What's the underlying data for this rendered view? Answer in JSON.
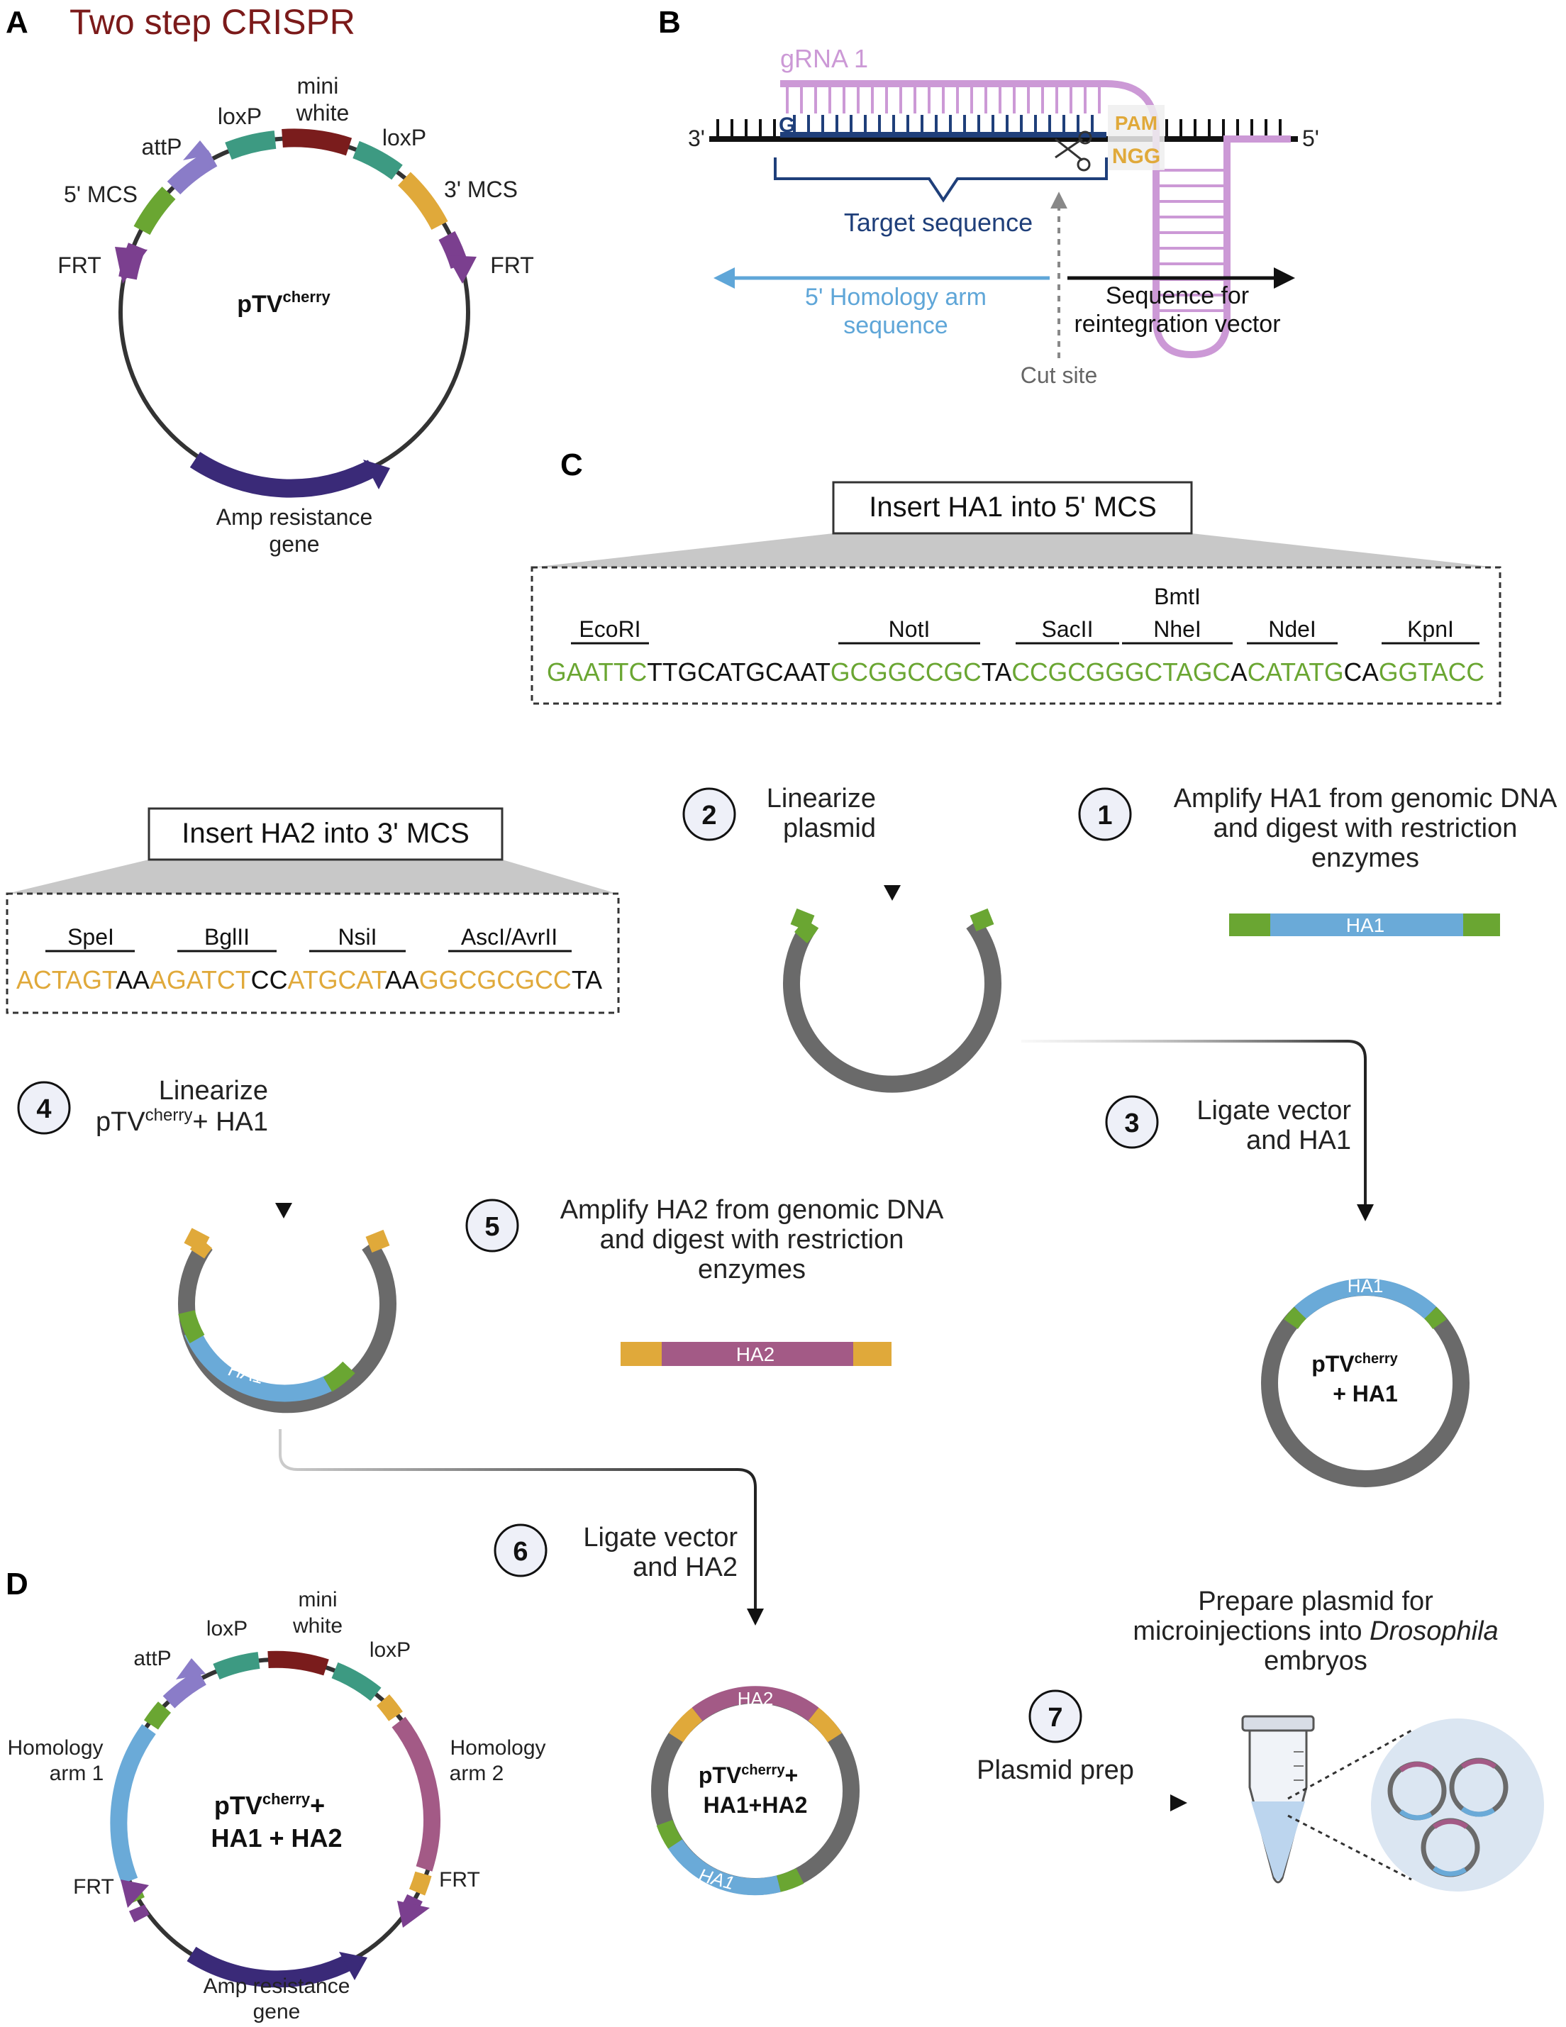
{
  "panels": {
    "a": "A",
    "b": "B",
    "c": "C",
    "d": "D"
  },
  "title": "Two step CRISPR",
  "colors": {
    "title": "#7b1a1a",
    "green": "#6aa632",
    "teal": "#3d9a82",
    "red": "#7a1c1c",
    "orange": "#e0a93a",
    "purple": "#7b3f8f",
    "lavender": "#8a7cc8",
    "navy": "#3a2a78",
    "blue": "#6aaad8",
    "pink": "#a35a86",
    "gray": "#6a6a6a",
    "grna": "#cc99d6",
    "target": "#1f3f7a",
    "light_blue": "#5fa6d8"
  },
  "plasmid_a": {
    "name_main": "pTV",
    "name_sup": "cherry",
    "labels": {
      "mini": "mini",
      "white": "white",
      "loxp_left": "loxP",
      "loxp_right": "loxP",
      "attp": "attP",
      "mcs5": "5' MCS",
      "mcs3": "3' MCS",
      "frt_left": "FRT",
      "frt_right": "FRT",
      "amp1": "Amp resistance",
      "amp2": "gene"
    }
  },
  "panel_b": {
    "grna": "gRNA 1",
    "g": "G",
    "end3": "3'",
    "end5": "5'",
    "pam": "PAM",
    "ngg": "NGG",
    "target": "Target sequence",
    "ha1": "5' Homology arm",
    "ha2": "sequence",
    "reint1": "Sequence for",
    "reint2": "reintegration vector",
    "cut": "Cut site"
  },
  "box_c": {
    "title": "Insert HA1 into 5' MCS",
    "enzymes": {
      "ecori": "EcoRI",
      "noti": "NotI",
      "bmti": "BmtI",
      "sacii": "SacII",
      "nhei": "NheI",
      "ndei": "NdeI",
      "kpni": "KpnI"
    },
    "seq": [
      {
        "t": "GAATTC",
        "c": "green"
      },
      {
        "t": "TTGCATGCAAT",
        "c": "black"
      },
      {
        "t": "GCGGCCGC",
        "c": "green"
      },
      {
        "t": "TA",
        "c": "black"
      },
      {
        "t": "CCGCGGGCTAGC",
        "c": "green"
      },
      {
        "t": "A",
        "c": "black"
      },
      {
        "t": "CATATG",
        "c": "green"
      },
      {
        "t": "CA",
        "c": "black"
      },
      {
        "t": "GGTACC",
        "c": "green"
      }
    ]
  },
  "box_ha2": {
    "title": "Insert HA2 into 3' MCS",
    "enzymes": {
      "spei": "SpeI",
      "bglii": "BglII",
      "nsii": "NsiI",
      "asci": "AscI/AvrII"
    },
    "seq": [
      {
        "t": "ACTAGT",
        "c": "orange"
      },
      {
        "t": "AA",
        "c": "black"
      },
      {
        "t": "AGATCT",
        "c": "orange"
      },
      {
        "t": "CC",
        "c": "black"
      },
      {
        "t": "ATGCAT",
        "c": "orange"
      },
      {
        "t": "AA",
        "c": "black"
      },
      {
        "t": "GGCGCGCC",
        "c": "orange"
      },
      {
        "t": "TA",
        "c": "black"
      }
    ]
  },
  "steps": {
    "s1": {
      "num": "1",
      "l1": "Amplify HA1 from genomic DNA",
      "l2": "and digest with restriction",
      "l3": "enzymes"
    },
    "s2": {
      "num": "2",
      "l1": "Linearize",
      "l2": "plasmid"
    },
    "s3": {
      "num": "3",
      "l1": "Ligate vector",
      "l2": "and HA1"
    },
    "s4": {
      "num": "4",
      "l1": "Linearize",
      "l2_main": "pTV",
      "l2_sup": "cherry",
      "l2_rest": "+ HA1"
    },
    "s5": {
      "num": "5",
      "l1": "Amplify HA2 from genomic DNA",
      "l2": "and digest with restriction",
      "l3": "enzymes"
    },
    "s6": {
      "num": "6",
      "l1": "Ligate vector",
      "l2": "and HA2"
    },
    "s7": {
      "num": "7",
      "l1": "Plasmid prep"
    }
  },
  "fragments": {
    "ha1": "HA1",
    "ha2": "HA2"
  },
  "plasmid_ha1": {
    "name_main": "pTV",
    "name_sup": "cherry",
    "line2": "+ HA1",
    "arc": "HA1"
  },
  "plasmid_ha12": {
    "name_main": "pTV",
    "name_sup": "cherry",
    "plus": "+",
    "line2": "HA1+HA2",
    "arc_top": "HA2",
    "arc_bottom": "HA1"
  },
  "linear_ha1_arc": "HA1",
  "prepare": {
    "l1": "Prepare plasmid for",
    "l2_pre": "microinjections into ",
    "l2_italic": "Drosophila",
    "l3": "embryos"
  },
  "plasmid_d": {
    "name_main": "pTV",
    "name_sup": "cherry",
    "plus": "+",
    "line2": "HA1 + HA2",
    "labels": {
      "mini": "mini",
      "white": "white",
      "loxp_left": "loxP",
      "loxp_right": "loxP",
      "attp": "attP",
      "ham1a": "Homology",
      "ham1b": "arm 1",
      "ham2a": "Homology",
      "ham2b": "arm 2",
      "frt_left": "FRT",
      "frt_right": "FRT",
      "amp1": "Amp resistance",
      "amp2": "gene"
    }
  }
}
